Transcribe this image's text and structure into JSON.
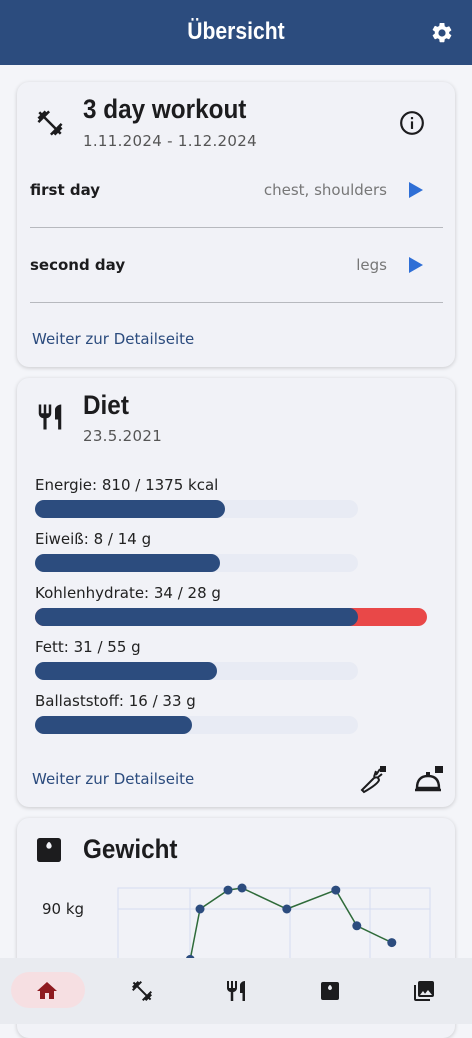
{
  "header": {
    "title": "Übersicht"
  },
  "workout": {
    "title": "3 day workout",
    "date_range": "1.11.2024 - 1.12.2024",
    "days": [
      {
        "name": "first day",
        "muscles": "chest, shoulders"
      },
      {
        "name": "second day",
        "muscles": "legs"
      }
    ],
    "link": "Weiter zur Detailseite"
  },
  "diet": {
    "title": "Diet",
    "date": "23.5.2021",
    "nutrients": [
      {
        "label": "Energie: 810 / 1375 kcal",
        "value": 810,
        "goal": 1375
      },
      {
        "label": "Eiweiß: 8 / 14 g",
        "value": 8,
        "goal": 14
      },
      {
        "label": "Kohlenhydrate: 34 / 28 g",
        "value": 34,
        "goal": 28
      },
      {
        "label": "Fett: 31 / 55 g",
        "value": 31,
        "goal": 55
      },
      {
        "label": "Ballaststoff: 16 / 33 g",
        "value": 16,
        "goal": 33
      }
    ],
    "link": "Weiter zur Detailseite"
  },
  "weight": {
    "title": "Gewicht",
    "chart_data": {
      "type": "line",
      "x": [
        3.3,
        4,
        6,
        7,
        10.2,
        13.7,
        15.2,
        17.7
      ],
      "values": [
        87.6,
        90,
        90.9,
        91,
        90,
        90.9,
        89.2,
        88.4
      ],
      "color": "#2f6b3a",
      "marker_color": "#2c4c7e",
      "xlim": [
        -1.86,
        20.43
      ],
      "ylim": [
        87,
        91
      ],
      "yticks": [
        {
          "value": 90,
          "label": "90 kg"
        }
      ],
      "grid": true
    }
  }
}
